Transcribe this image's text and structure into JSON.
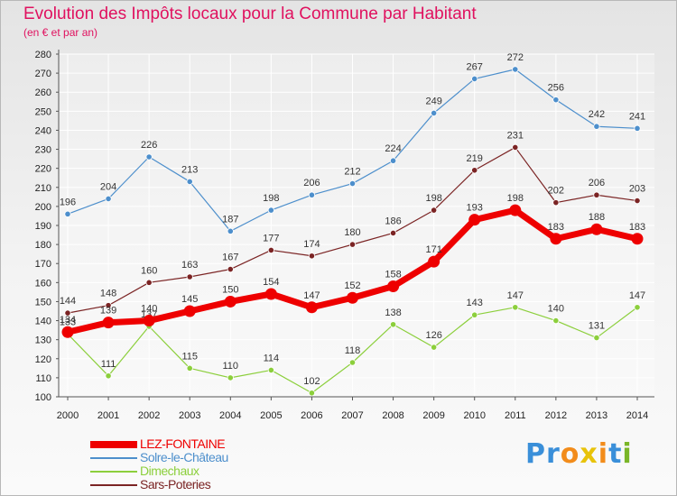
{
  "header": {
    "title": "Evolution des Impôts locaux pour la Commune par Habitant",
    "subtitle": "(en € et par an)"
  },
  "logo": {
    "letters": [
      "P",
      "r",
      "o",
      "x",
      "i",
      "t",
      "i"
    ],
    "colors": [
      "#3a8fd9",
      "#3a8fd9",
      "#f28c1b",
      "#e8c30a",
      "#f28c1b",
      "#3a8fd9",
      "#7ab628"
    ]
  },
  "chart_data": {
    "type": "line",
    "x": [
      "2000",
      "2001",
      "2002",
      "2003",
      "2004",
      "2005",
      "2006",
      "2007",
      "2008",
      "2009",
      "2010",
      "2011",
      "2012",
      "2013",
      "2014"
    ],
    "ylim": [
      100,
      280
    ],
    "yticks": [
      100,
      110,
      120,
      130,
      140,
      150,
      160,
      170,
      180,
      190,
      200,
      210,
      220,
      230,
      240,
      250,
      260,
      270,
      280
    ],
    "grid": true,
    "legend_position": "bottom-left",
    "series": [
      {
        "name": "Solre-le-Château",
        "color": "#4d8fcc",
        "values": [
          196,
          204,
          226,
          213,
          187,
          198,
          206,
          212,
          224,
          249,
          267,
          272,
          256,
          242,
          241
        ]
      },
      {
        "name": "Sars-Poteries",
        "color": "#7b2424",
        "values": [
          144,
          148,
          160,
          163,
          167,
          177,
          174,
          180,
          186,
          198,
          219,
          231,
          202,
          206,
          203
        ]
      },
      {
        "name": "Dimechaux",
        "color": "#8ccf3c",
        "values": [
          133,
          111,
          137,
          115,
          110,
          114,
          102,
          118,
          138,
          126,
          143,
          147,
          140,
          131,
          147
        ]
      },
      {
        "name": "LEZ-FONTAINE",
        "color": "#ee0000",
        "values": [
          134,
          139,
          140,
          145,
          150,
          154,
          147,
          152,
          158,
          171,
          193,
          198,
          183,
          188,
          183
        ]
      }
    ],
    "legend_order": [
      "LEZ-FONTAINE",
      "Solre-le-Château",
      "Dimechaux",
      "Sars-Poteries"
    ]
  }
}
